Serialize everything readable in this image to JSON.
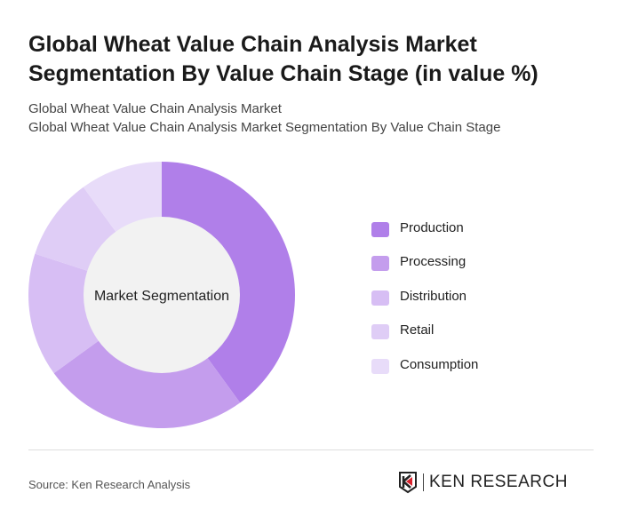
{
  "title": "Global Wheat Value Chain Analysis Market Segmentation By Value Chain Stage (in value %)",
  "subtitle1": "Global Wheat Value Chain Analysis Market",
  "subtitle2": "Global Wheat Value Chain Analysis Market Segmentation By Value Chain Stage",
  "source": "Source: Ken Research Analysis",
  "logo_text": "KEN RESEARCH",
  "chart_data": {
    "type": "pie",
    "donut": true,
    "center_label": "Market Segmentation",
    "categories": [
      "Production",
      "Processing",
      "Distribution",
      "Retail",
      "Consumption"
    ],
    "values": [
      40,
      25,
      15,
      10,
      10
    ],
    "colors": [
      "#b07fe9",
      "#c49ded",
      "#d7bef4",
      "#dfcdf6",
      "#e8dcf9"
    ],
    "center_color": "#f2f2f2",
    "legend": "right"
  }
}
